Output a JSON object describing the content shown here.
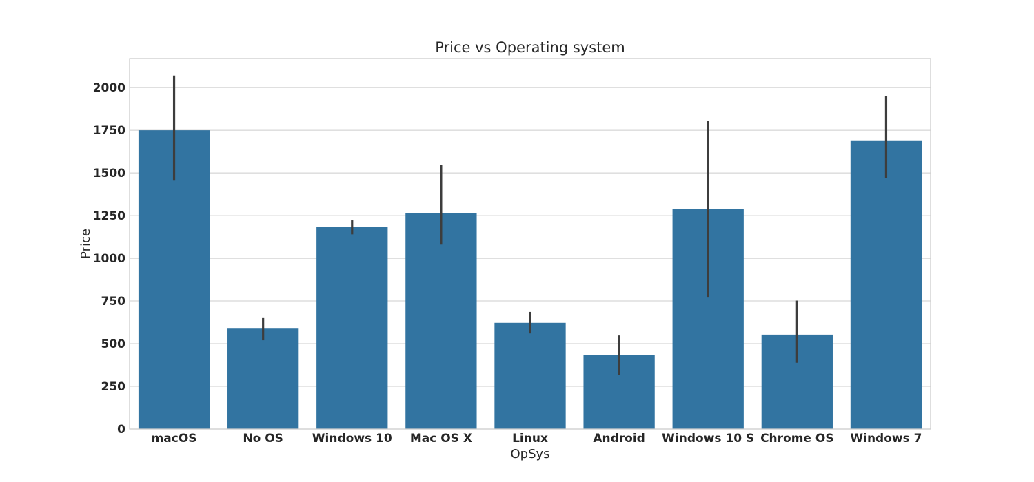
{
  "chart_data": {
    "type": "bar",
    "title": "Price vs Operating system",
    "xlabel": "OpSys",
    "ylabel": "Price",
    "categories": [
      "macOS",
      "No OS",
      "Windows 10",
      "Mac OS X",
      "Linux",
      "Android",
      "Windows 10 S",
      "Chrome OS",
      "Windows 7"
    ],
    "values": [
      1750,
      588,
      1182,
      1263,
      622,
      435,
      1287,
      553,
      1687
    ],
    "error_low": [
      1455,
      520,
      1140,
      1080,
      560,
      318,
      770,
      388,
      1470
    ],
    "error_high": [
      2070,
      650,
      1222,
      1548,
      686,
      548,
      1803,
      752,
      1948
    ],
    "ylim": [
      0,
      2170
    ],
    "yticks": [
      0,
      250,
      500,
      750,
      1000,
      1250,
      1500,
      1750,
      2000
    ],
    "grid": true,
    "legend": "none",
    "bar_color": "#3274a1",
    "error_color": "#3d3d3d",
    "grid_color": "#cccccc",
    "text_color": "#262626"
  }
}
